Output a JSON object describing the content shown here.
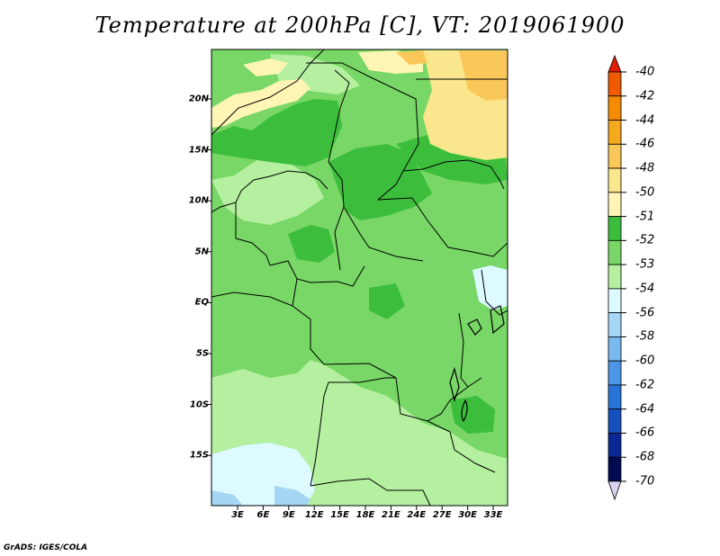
{
  "title": "Temperature at 200hPa [C], VT: 2019061900",
  "credit": "GrADS: IGES/COLA",
  "map": {
    "variable": "Temperature",
    "level": "200hPa",
    "units": "C",
    "valid_time": "2019061900",
    "lat_labels": [
      "20N",
      "15N",
      "10N",
      "5N",
      "EQ",
      "5S",
      "10S",
      "15S"
    ],
    "lon_labels": [
      "3E",
      "6E",
      "9E",
      "12E",
      "15E",
      "18E",
      "21E",
      "24E",
      "27E",
      "30E",
      "33E"
    ]
  },
  "colorbar": {
    "labels": [
      "-40",
      "-42",
      "-44",
      "-46",
      "-48",
      "-50",
      "-51",
      "-52",
      "-53",
      "-54",
      "-56",
      "-58",
      "-60",
      "-62",
      "-64",
      "-66",
      "-68",
      "-70"
    ],
    "colors": [
      "#e01e00",
      "#f05a00",
      "#f58c00",
      "#f5aa1e",
      "#fac85a",
      "#fae68c",
      "#fff5b4",
      "#3cbe3c",
      "#78d766",
      "#b4f0a0",
      "#dcfaff",
      "#a5d7f5",
      "#78b9ee",
      "#4b96e6",
      "#2873d7",
      "#1450be",
      "#0a2896",
      "#000a50",
      "#dcd2f0"
    ]
  },
  "fills": {
    "base": "#78d766",
    "dark": "#3cbe3c",
    "light": "#b4f0a0",
    "pale": "#fff5b4",
    "orange": "#fac85a",
    "gold": "#fae68c",
    "ice": "#dcfaff",
    "sky": "#a5d7f5"
  }
}
